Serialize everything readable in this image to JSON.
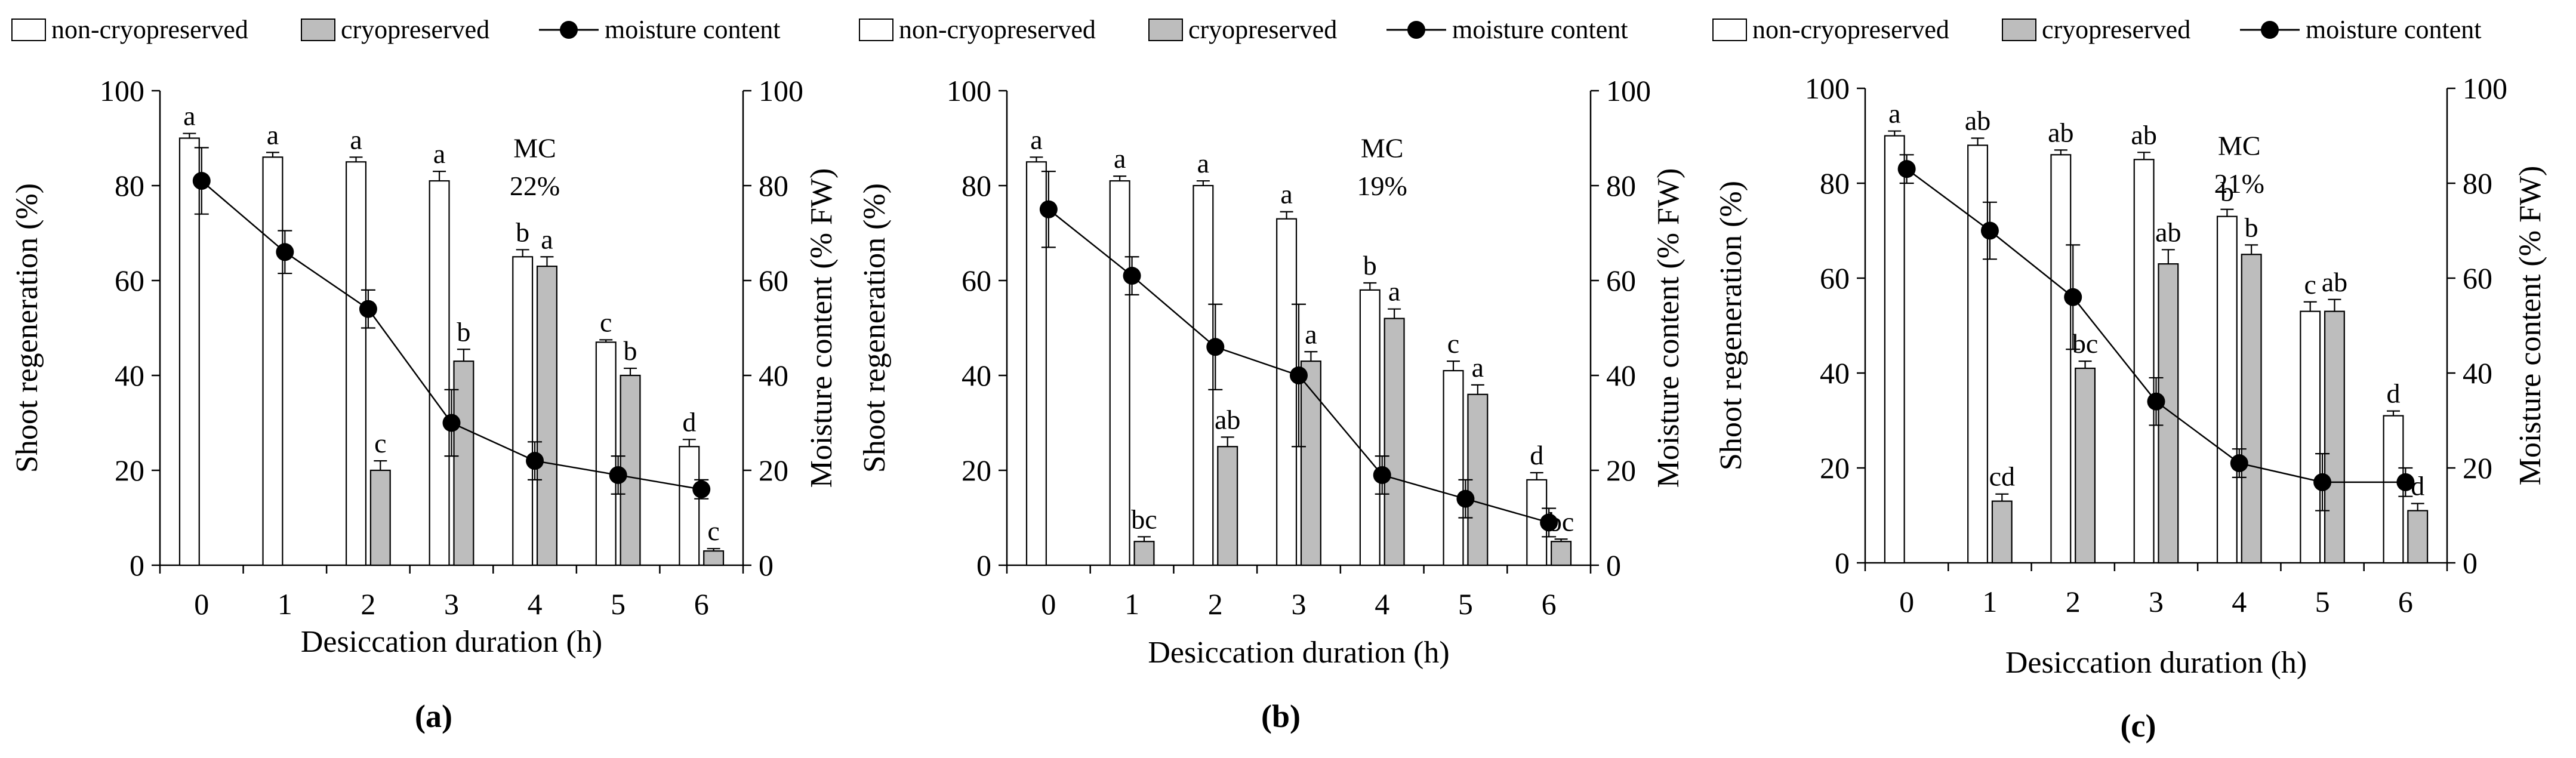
{
  "colors": {
    "non_cryopreserved_fill": "#ffffff",
    "cryopreserved_fill": "#bdbdbd",
    "line": "#000000",
    "marker": "#000000"
  },
  "chart_data": [
    {
      "type": "bar",
      "panel_label": "(a)",
      "xlabel": "Desiccation duration (h)",
      "ylabel": "Shoot regeneration (%)",
      "y2label": "Moisture content (% FW)",
      "categories": [
        "0",
        "1",
        "2",
        "3",
        "4",
        "5",
        "6"
      ],
      "ylim": [
        0,
        100
      ],
      "y2lim": [
        0,
        100
      ],
      "yticks": [
        "0",
        "20",
        "40",
        "60",
        "80",
        "100"
      ],
      "y2ticks": [
        "0",
        "20",
        "40",
        "60",
        "80",
        "100"
      ],
      "legend": [
        "non-cryopreserved",
        "cryopreserved",
        "moisture content"
      ],
      "series": [
        {
          "name": "non-cryopreserved",
          "values": [
            90,
            86,
            85,
            81,
            65,
            47,
            25
          ],
          "errors": [
            1,
            1,
            1,
            2,
            1.5,
            0.5,
            1.5
          ],
          "labels": [
            "a",
            "a",
            "a",
            "a",
            "b",
            "c",
            "d"
          ]
        },
        {
          "name": "cryopreserved",
          "values": [
            null,
            null,
            20,
            43,
            63,
            40,
            3
          ],
          "errors": [
            0,
            0,
            2,
            2.5,
            2,
            1.5,
            0.5
          ],
          "labels": [
            "",
            "",
            "c",
            "b",
            "a",
            "b",
            "c"
          ]
        },
        {
          "name": "moisture content",
          "axis": "right",
          "values": [
            81,
            66,
            54,
            30,
            22,
            19,
            16
          ],
          "errors": [
            7,
            4.5,
            4,
            7,
            4,
            4,
            2
          ]
        }
      ],
      "annotation": {
        "label": "MC",
        "value": "22%"
      }
    },
    {
      "type": "bar",
      "panel_label": "(b)",
      "xlabel": "Desiccation duration (h)",
      "ylabel": "Shoot regeneration (%)",
      "y2label": "Moisture content (% FW)",
      "categories": [
        "0",
        "1",
        "2",
        "3",
        "4",
        "5",
        "6"
      ],
      "ylim": [
        0,
        100
      ],
      "y2lim": [
        0,
        100
      ],
      "yticks": [
        "0",
        "20",
        "40",
        "60",
        "80",
        "100"
      ],
      "y2ticks": [
        "0",
        "20",
        "40",
        "60",
        "80",
        "100"
      ],
      "legend": [
        "non-cryopreserved",
        "cryopreserved",
        "moisture content"
      ],
      "series": [
        {
          "name": "non-cryopreserved",
          "values": [
            85,
            81,
            80,
            73,
            58,
            41,
            18
          ],
          "errors": [
            1,
            1,
            1,
            1.5,
            1.5,
            2,
            1.5
          ],
          "labels": [
            "a",
            "a",
            "a",
            "a",
            "b",
            "c",
            "d"
          ]
        },
        {
          "name": "cryopreserved",
          "values": [
            null,
            5,
            25,
            43,
            52,
            36,
            5
          ],
          "errors": [
            0,
            1,
            2,
            2,
            2,
            2,
            0.5
          ],
          "labels": [
            "",
            "bc",
            "ab",
            "a",
            "a",
            "a",
            "bc"
          ]
        },
        {
          "name": "moisture content",
          "axis": "right",
          "values": [
            75,
            61,
            46,
            40,
            19,
            14,
            9
          ],
          "errors": [
            8,
            4,
            9,
            15,
            4,
            4,
            3
          ]
        }
      ],
      "annotation": {
        "label": "MC",
        "value": "19%"
      }
    },
    {
      "type": "bar",
      "panel_label": "(c)",
      "xlabel": "Desiccation duration (h)",
      "ylabel": "Shoot regeneration  (%)",
      "y2label": "Moisture content  (% FW)",
      "categories": [
        "0",
        "1",
        "2",
        "3",
        "4",
        "5",
        "6"
      ],
      "ylim": [
        0,
        100
      ],
      "y2lim": [
        0,
        100
      ],
      "yticks": [
        "0",
        "20",
        "40",
        "60",
        "80",
        "100"
      ],
      "y2ticks": [
        "0",
        "20",
        "40",
        "60",
        "80",
        "100"
      ],
      "legend": [
        "non-cryopreserved",
        "cryopreserved",
        "moisture content"
      ],
      "series": [
        {
          "name": "non-cryopreserved",
          "values": [
            90,
            88,
            86,
            85,
            73,
            53,
            31
          ],
          "errors": [
            1,
            1.5,
            1,
            1.5,
            1.5,
            2,
            1
          ],
          "labels": [
            "a",
            "ab",
            "ab",
            "ab",
            "b",
            "c",
            "d"
          ]
        },
        {
          "name": "cryopreserved",
          "values": [
            null,
            13,
            41,
            63,
            65,
            53,
            11
          ],
          "errors": [
            0,
            1.5,
            1.5,
            3,
            2,
            2.5,
            1.5
          ],
          "labels": [
            "",
            "cd",
            "bc",
            "ab",
            "b",
            "ab",
            "d"
          ]
        },
        {
          "name": "moisture content",
          "axis": "right",
          "values": [
            83,
            70,
            56,
            34,
            21,
            17,
            17
          ],
          "errors": [
            3,
            6,
            11,
            5,
            3,
            6,
            3
          ]
        }
      ],
      "annotation": {
        "label": "MC",
        "value": "21%"
      }
    }
  ]
}
